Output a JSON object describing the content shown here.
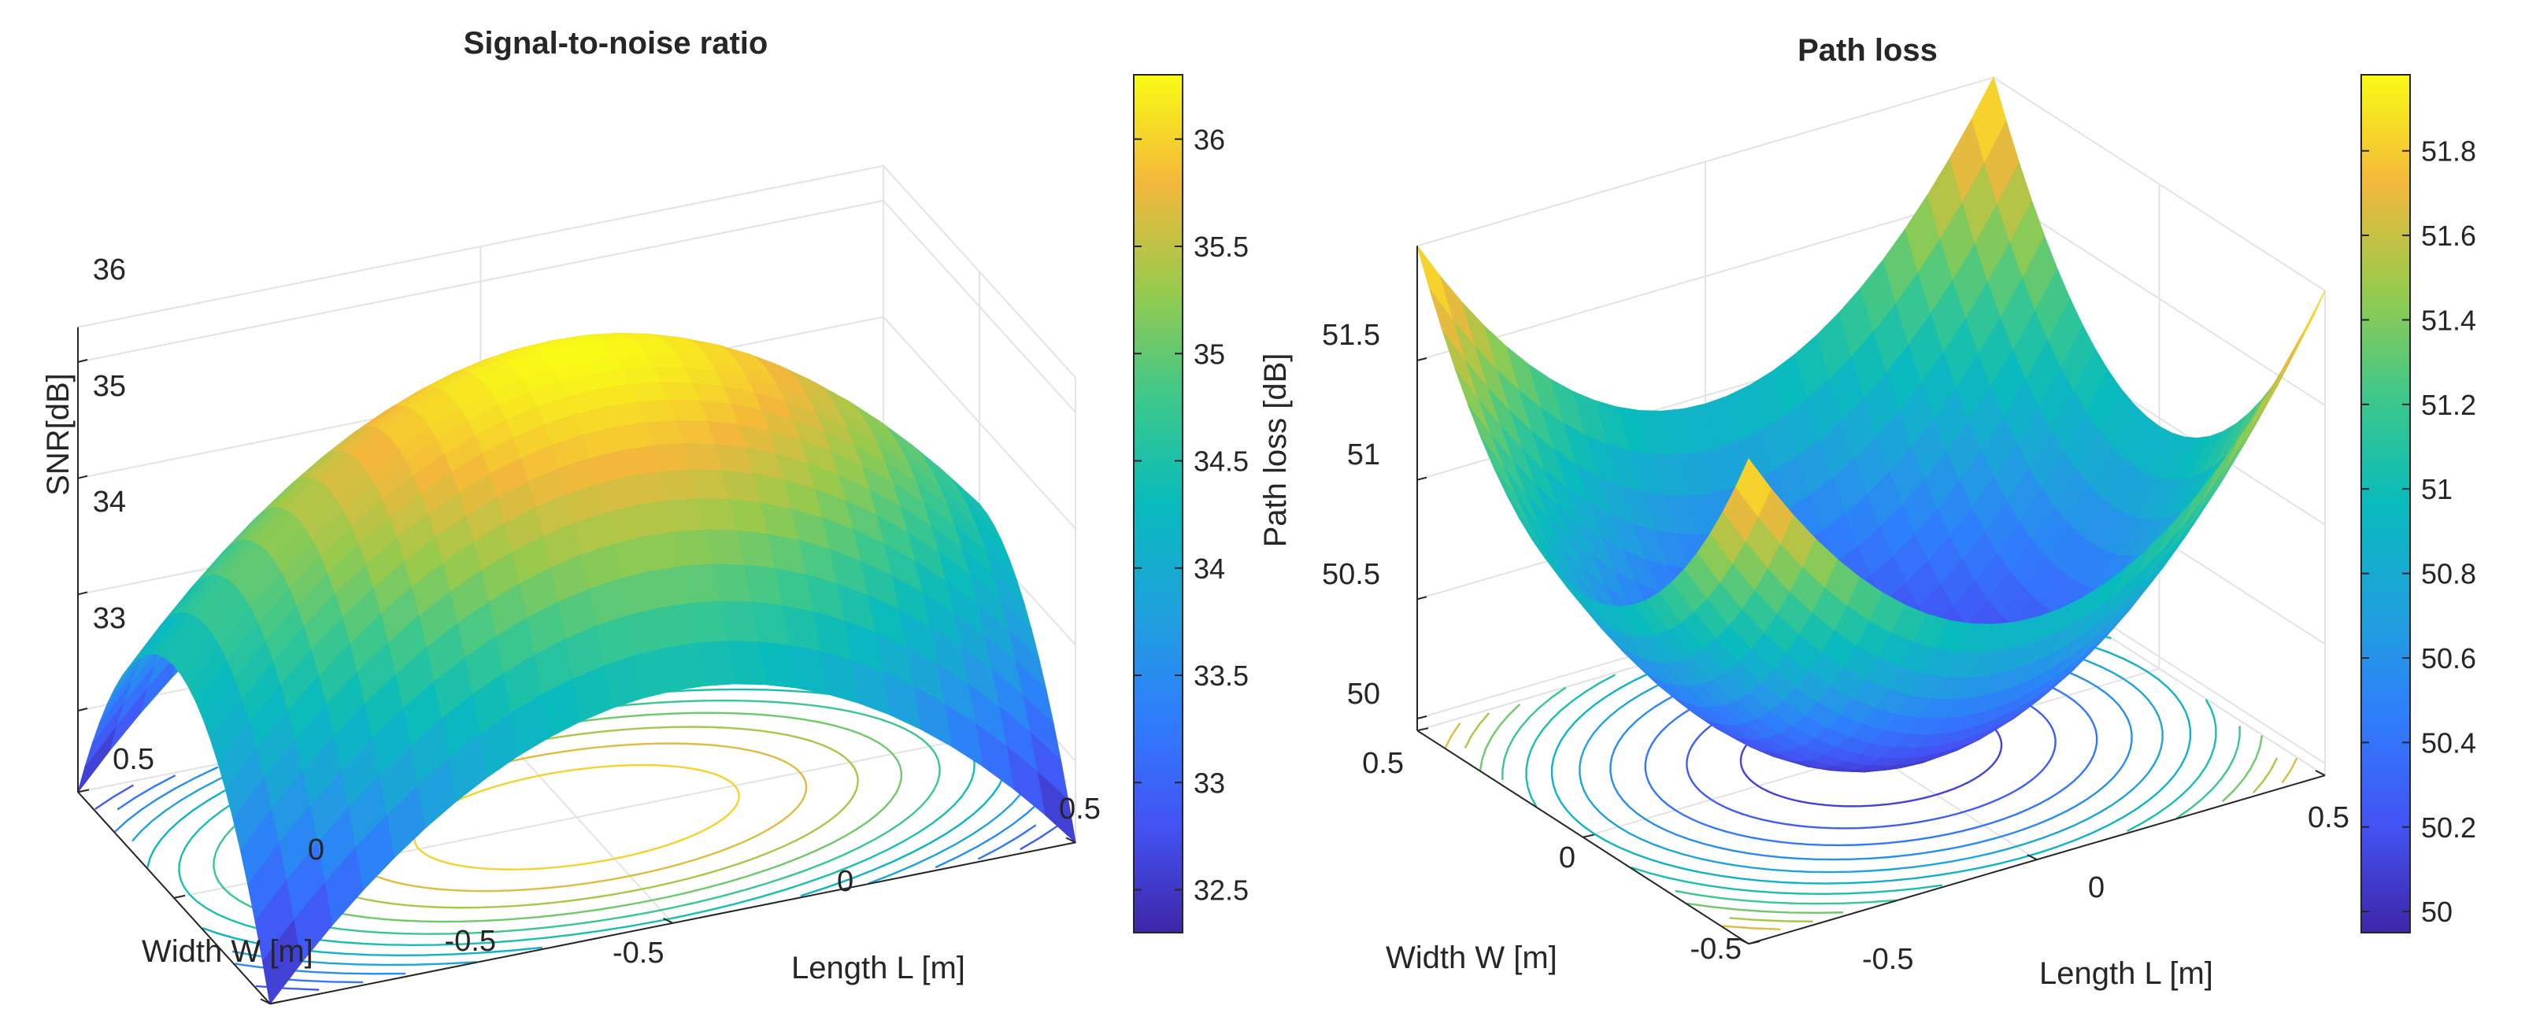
{
  "chart_data": [
    {
      "type": "surface",
      "title": "Signal-to-noise ratio",
      "xlabel": "Length L [m]",
      "ylabel": "Width W [m]",
      "zlabel": "SNR[dB]",
      "xlim": [
        -0.5,
        0.5
      ],
      "ylim": [
        -0.5,
        0.5
      ],
      "zlim": [
        32.3,
        36.3
      ],
      "x_ticks": [
        -0.5,
        0,
        0.5
      ],
      "x_tick_labels": [
        "-0.5",
        "0",
        "0.5"
      ],
      "y_ticks": [
        -0.5,
        0,
        0.5
      ],
      "y_tick_labels": [
        "-0.5",
        "0",
        "0.5"
      ],
      "z_ticks": [
        33,
        34,
        35,
        36
      ],
      "z_tick_labels": [
        "33",
        "34",
        "35",
        "36"
      ],
      "surface_model": {
        "center": 36.3,
        "corner": 32.3,
        "shape": "dome, maximum at center"
      },
      "contours_on_floor": true,
      "grid": true,
      "colormap": "parula",
      "colorbar": {
        "range": [
          32.3,
          36.3
        ],
        "ticks": [
          32.5,
          33,
          33.5,
          34,
          34.5,
          35,
          35.5,
          36
        ],
        "tick_labels": [
          "32.5",
          "33",
          "33.5",
          "34",
          "34.5",
          "35",
          "35.5",
          "36"
        ]
      }
    },
    {
      "type": "surface",
      "title": "Path loss",
      "xlabel": "Length L [m]",
      "ylabel": "Width W [m]",
      "zlabel": "Path loss [dB]",
      "xlim": [
        -0.5,
        0.5
      ],
      "ylim": [
        -0.5,
        0.5
      ],
      "zlim": [
        49.95,
        51.98
      ],
      "x_ticks": [
        -0.5,
        0,
        0.5
      ],
      "x_tick_labels": [
        "-0.5",
        "0",
        "0.5"
      ],
      "y_ticks": [
        -0.5,
        0,
        0.5
      ],
      "y_tick_labels": [
        "-0.5",
        "0",
        "0.5"
      ],
      "z_ticks": [
        50,
        50.5,
        51,
        51.5
      ],
      "z_tick_labels": [
        "50",
        "50.5",
        "51",
        "51.5"
      ],
      "surface_model": {
        "center": 49.95,
        "corner": 51.98,
        "shape": "bowl, minimum at center"
      },
      "contours_on_floor": true,
      "grid": true,
      "colormap": "parula",
      "colorbar": {
        "range": [
          49.95,
          51.98
        ],
        "ticks": [
          50,
          50.2,
          50.4,
          50.6,
          50.8,
          51,
          51.2,
          51.4,
          51.6,
          51.8
        ],
        "tick_labels": [
          "50",
          "50.2",
          "50.4",
          "50.6",
          "50.8",
          "51",
          "51.2",
          "51.4",
          "51.6",
          "51.8"
        ]
      }
    }
  ]
}
